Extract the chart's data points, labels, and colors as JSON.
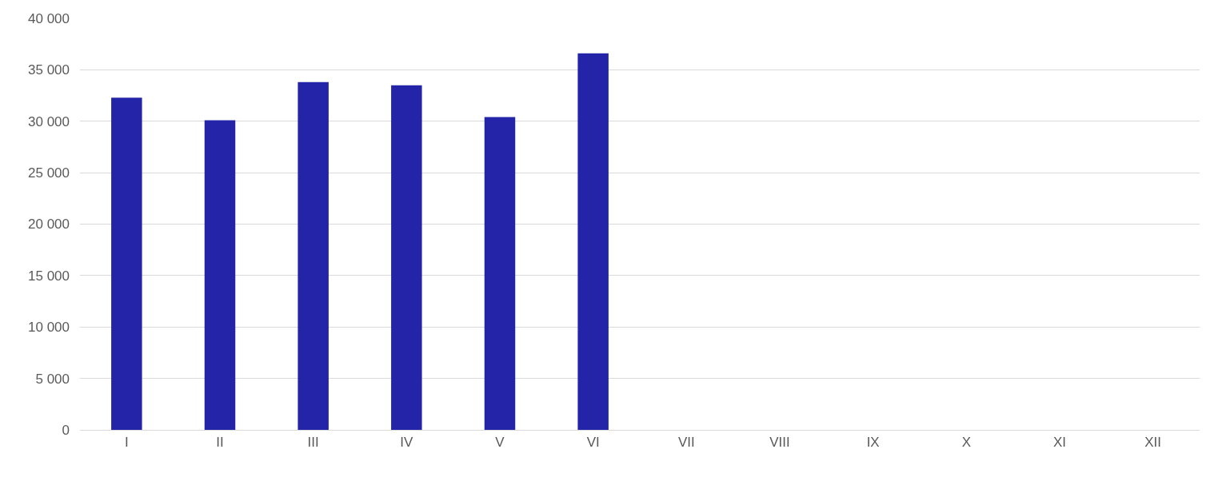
{
  "chart_data": {
    "type": "bar",
    "categories": [
      "I",
      "II",
      "III",
      "IV",
      "V",
      "VI",
      "VII",
      "VIII",
      "IX",
      "X",
      "XI",
      "XII"
    ],
    "values": [
      32300,
      30100,
      33800,
      33500,
      30400,
      36600,
      null,
      null,
      null,
      null,
      null,
      null
    ],
    "color": "#2424a8",
    "ylim": [
      0,
      40000
    ],
    "yticks": [
      {
        "value": 0,
        "label": "0"
      },
      {
        "value": 5000,
        "label": "5 000"
      },
      {
        "value": 10000,
        "label": "10 000"
      },
      {
        "value": 15000,
        "label": "15 000"
      },
      {
        "value": 20000,
        "label": "20 000"
      },
      {
        "value": 25000,
        "label": "25 000"
      },
      {
        "value": 30000,
        "label": "30 000"
      },
      {
        "value": 35000,
        "label": "35 000"
      },
      {
        "value": 40000,
        "label": "40 000"
      }
    ],
    "grid": "y",
    "legend": false
  }
}
